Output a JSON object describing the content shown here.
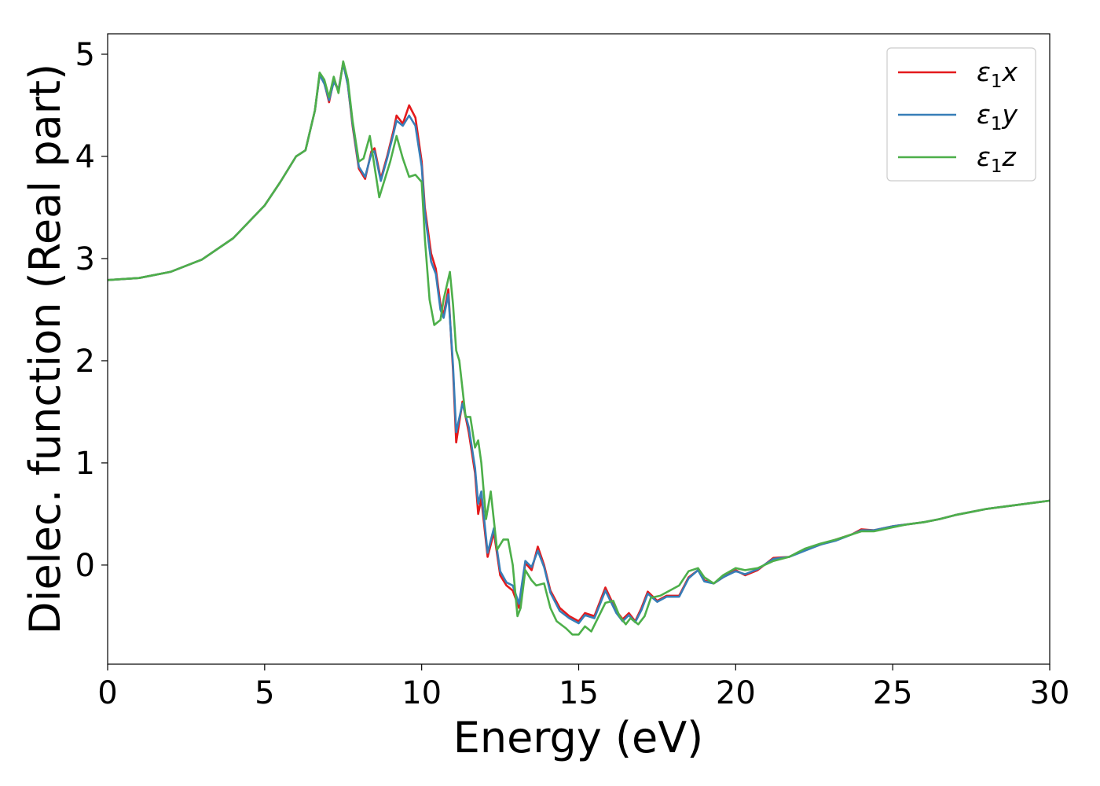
{
  "chart_data": {
    "type": "line",
    "xlabel": "Energy (eV)",
    "ylabel": "Dielec. function (Real part)",
    "xlim": [
      0,
      30
    ],
    "ylim": [
      -0.97,
      5.2
    ],
    "xticks": [
      0,
      5,
      10,
      15,
      20,
      25,
      30
    ],
    "yticks": [
      0,
      1,
      2,
      3,
      4,
      5
    ],
    "grid": false,
    "legend_position": "top-right",
    "series": [
      {
        "name": "ε₁x",
        "legend": {
          "sym": "ε",
          "sub": "1",
          "var": "x"
        },
        "color": "#e41a1c",
        "points": [
          [
            0,
            2.79
          ],
          [
            1,
            2.81
          ],
          [
            2,
            2.87
          ],
          [
            3,
            2.99
          ],
          [
            4,
            3.2
          ],
          [
            5,
            3.52
          ],
          [
            5.5,
            3.75
          ],
          [
            6,
            4.0
          ],
          [
            6.3,
            4.06
          ],
          [
            6.6,
            4.45
          ],
          [
            6.75,
            4.8
          ],
          [
            6.9,
            4.72
          ],
          [
            7.05,
            4.53
          ],
          [
            7.2,
            4.75
          ],
          [
            7.35,
            4.65
          ],
          [
            7.5,
            4.92
          ],
          [
            7.65,
            4.7
          ],
          [
            7.8,
            4.3
          ],
          [
            8.0,
            3.88
          ],
          [
            8.2,
            3.78
          ],
          [
            8.4,
            4.05
          ],
          [
            8.5,
            4.08
          ],
          [
            8.7,
            3.78
          ],
          [
            8.9,
            4.0
          ],
          [
            9.1,
            4.25
          ],
          [
            9.2,
            4.4
          ],
          [
            9.4,
            4.32
          ],
          [
            9.6,
            4.5
          ],
          [
            9.8,
            4.38
          ],
          [
            10.0,
            3.95
          ],
          [
            10.1,
            3.5
          ],
          [
            10.3,
            3.05
          ],
          [
            10.45,
            2.9
          ],
          [
            10.6,
            2.55
          ],
          [
            10.7,
            2.45
          ],
          [
            10.85,
            2.7
          ],
          [
            11.0,
            1.9
          ],
          [
            11.1,
            1.2
          ],
          [
            11.3,
            1.6
          ],
          [
            11.5,
            1.3
          ],
          [
            11.7,
            0.9
          ],
          [
            11.8,
            0.5
          ],
          [
            11.9,
            0.65
          ],
          [
            12.1,
            0.08
          ],
          [
            12.3,
            0.32
          ],
          [
            12.5,
            -0.1
          ],
          [
            12.7,
            -0.2
          ],
          [
            12.9,
            -0.25
          ],
          [
            13.1,
            -0.42
          ],
          [
            13.3,
            0.02
          ],
          [
            13.5,
            -0.05
          ],
          [
            13.7,
            0.18
          ],
          [
            13.9,
            0.0
          ],
          [
            14.1,
            -0.25
          ],
          [
            14.4,
            -0.42
          ],
          [
            14.7,
            -0.5
          ],
          [
            15.0,
            -0.55
          ],
          [
            15.2,
            -0.47
          ],
          [
            15.5,
            -0.5
          ],
          [
            15.85,
            -0.22
          ],
          [
            16.2,
            -0.45
          ],
          [
            16.4,
            -0.53
          ],
          [
            16.6,
            -0.47
          ],
          [
            16.8,
            -0.55
          ],
          [
            17.0,
            -0.42
          ],
          [
            17.2,
            -0.26
          ],
          [
            17.5,
            -0.35
          ],
          [
            17.8,
            -0.3
          ],
          [
            18.2,
            -0.3
          ],
          [
            18.5,
            -0.12
          ],
          [
            18.8,
            -0.05
          ],
          [
            19.0,
            -0.15
          ],
          [
            19.3,
            -0.18
          ],
          [
            19.6,
            -0.12
          ],
          [
            20.0,
            -0.05
          ],
          [
            20.3,
            -0.1
          ],
          [
            20.7,
            -0.05
          ],
          [
            21.2,
            0.07
          ],
          [
            21.7,
            0.08
          ],
          [
            22.2,
            0.15
          ],
          [
            22.7,
            0.2
          ],
          [
            23.2,
            0.25
          ],
          [
            23.7,
            0.3
          ],
          [
            24.0,
            0.35
          ],
          [
            24.4,
            0.34
          ],
          [
            25.0,
            0.38
          ],
          [
            25.5,
            0.4
          ],
          [
            26.0,
            0.42
          ],
          [
            26.5,
            0.45
          ],
          [
            27.0,
            0.49
          ],
          [
            27.5,
            0.52
          ],
          [
            28.0,
            0.55
          ],
          [
            28.5,
            0.57
          ],
          [
            29.0,
            0.59
          ],
          [
            29.5,
            0.61
          ],
          [
            30.0,
            0.63
          ]
        ]
      },
      {
        "name": "ε₁y",
        "legend": {
          "sym": "ε",
          "sub": "1",
          "var": "y"
        },
        "color": "#377eb8",
        "points": [
          [
            0,
            2.79
          ],
          [
            1,
            2.81
          ],
          [
            2,
            2.87
          ],
          [
            3,
            2.99
          ],
          [
            4,
            3.2
          ],
          [
            5,
            3.52
          ],
          [
            5.5,
            3.75
          ],
          [
            6,
            4.0
          ],
          [
            6.3,
            4.06
          ],
          [
            6.6,
            4.45
          ],
          [
            6.75,
            4.8
          ],
          [
            6.9,
            4.71
          ],
          [
            7.05,
            4.55
          ],
          [
            7.2,
            4.73
          ],
          [
            7.35,
            4.65
          ],
          [
            7.5,
            4.91
          ],
          [
            7.65,
            4.7
          ],
          [
            7.8,
            4.32
          ],
          [
            8.0,
            3.9
          ],
          [
            8.2,
            3.8
          ],
          [
            8.4,
            4.03
          ],
          [
            8.5,
            4.05
          ],
          [
            8.7,
            3.76
          ],
          [
            8.9,
            3.98
          ],
          [
            9.1,
            4.22
          ],
          [
            9.2,
            4.35
          ],
          [
            9.4,
            4.3
          ],
          [
            9.6,
            4.4
          ],
          [
            9.8,
            4.3
          ],
          [
            10.0,
            3.9
          ],
          [
            10.1,
            3.45
          ],
          [
            10.3,
            2.97
          ],
          [
            10.45,
            2.85
          ],
          [
            10.6,
            2.5
          ],
          [
            10.7,
            2.42
          ],
          [
            10.85,
            2.65
          ],
          [
            11.0,
            1.95
          ],
          [
            11.1,
            1.3
          ],
          [
            11.3,
            1.58
          ],
          [
            11.5,
            1.35
          ],
          [
            11.7,
            0.95
          ],
          [
            11.8,
            0.6
          ],
          [
            11.9,
            0.72
          ],
          [
            12.1,
            0.12
          ],
          [
            12.3,
            0.36
          ],
          [
            12.5,
            -0.06
          ],
          [
            12.7,
            -0.17
          ],
          [
            12.9,
            -0.2
          ],
          [
            13.1,
            -0.38
          ],
          [
            13.3,
            0.04
          ],
          [
            13.5,
            -0.02
          ],
          [
            13.7,
            0.14
          ],
          [
            13.9,
            -0.02
          ],
          [
            14.1,
            -0.27
          ],
          [
            14.4,
            -0.45
          ],
          [
            14.7,
            -0.52
          ],
          [
            15.0,
            -0.57
          ],
          [
            15.2,
            -0.49
          ],
          [
            15.5,
            -0.52
          ],
          [
            15.85,
            -0.25
          ],
          [
            16.2,
            -0.47
          ],
          [
            16.4,
            -0.55
          ],
          [
            16.6,
            -0.49
          ],
          [
            16.8,
            -0.56
          ],
          [
            17.0,
            -0.44
          ],
          [
            17.2,
            -0.28
          ],
          [
            17.5,
            -0.36
          ],
          [
            17.8,
            -0.31
          ],
          [
            18.2,
            -0.31
          ],
          [
            18.5,
            -0.13
          ],
          [
            18.8,
            -0.05
          ],
          [
            19.0,
            -0.16
          ],
          [
            19.3,
            -0.18
          ],
          [
            19.6,
            -0.12
          ],
          [
            20.0,
            -0.06
          ],
          [
            20.3,
            -0.09
          ],
          [
            20.7,
            -0.04
          ],
          [
            21.2,
            0.06
          ],
          [
            21.7,
            0.08
          ],
          [
            22.2,
            0.14
          ],
          [
            22.7,
            0.2
          ],
          [
            23.2,
            0.24
          ],
          [
            23.7,
            0.3
          ],
          [
            24.0,
            0.34
          ],
          [
            24.4,
            0.34
          ],
          [
            25.0,
            0.38
          ],
          [
            25.5,
            0.4
          ],
          [
            26.0,
            0.42
          ],
          [
            26.5,
            0.45
          ],
          [
            27.0,
            0.49
          ],
          [
            27.5,
            0.52
          ],
          [
            28.0,
            0.55
          ],
          [
            28.5,
            0.57
          ],
          [
            29.0,
            0.59
          ],
          [
            29.5,
            0.61
          ],
          [
            30.0,
            0.63
          ]
        ]
      },
      {
        "name": "ε₁z",
        "legend": {
          "sym": "ε",
          "sub": "1",
          "var": "z"
        },
        "color": "#4daf4a",
        "points": [
          [
            0,
            2.79
          ],
          [
            1,
            2.81
          ],
          [
            2,
            2.87
          ],
          [
            3,
            2.99
          ],
          [
            4,
            3.2
          ],
          [
            5,
            3.52
          ],
          [
            5.5,
            3.75
          ],
          [
            6,
            4.0
          ],
          [
            6.3,
            4.06
          ],
          [
            6.6,
            4.45
          ],
          [
            6.75,
            4.82
          ],
          [
            6.9,
            4.75
          ],
          [
            7.05,
            4.58
          ],
          [
            7.2,
            4.78
          ],
          [
            7.35,
            4.62
          ],
          [
            7.5,
            4.93
          ],
          [
            7.65,
            4.75
          ],
          [
            7.8,
            4.35
          ],
          [
            8.0,
            3.95
          ],
          [
            8.15,
            3.98
          ],
          [
            8.35,
            4.2
          ],
          [
            8.5,
            3.9
          ],
          [
            8.65,
            3.6
          ],
          [
            8.85,
            3.8
          ],
          [
            9.0,
            3.95
          ],
          [
            9.2,
            4.2
          ],
          [
            9.4,
            3.98
          ],
          [
            9.6,
            3.8
          ],
          [
            9.8,
            3.82
          ],
          [
            10.0,
            3.75
          ],
          [
            10.1,
            3.2
          ],
          [
            10.25,
            2.6
          ],
          [
            10.4,
            2.35
          ],
          [
            10.6,
            2.4
          ],
          [
            10.7,
            2.6
          ],
          [
            10.9,
            2.87
          ],
          [
            11.0,
            2.55
          ],
          [
            11.1,
            2.1
          ],
          [
            11.2,
            2.0
          ],
          [
            11.4,
            1.45
          ],
          [
            11.55,
            1.45
          ],
          [
            11.7,
            1.15
          ],
          [
            11.8,
            1.22
          ],
          [
            11.9,
            1.0
          ],
          [
            12.05,
            0.45
          ],
          [
            12.2,
            0.72
          ],
          [
            12.4,
            0.15
          ],
          [
            12.6,
            0.25
          ],
          [
            12.75,
            0.25
          ],
          [
            12.9,
            0.0
          ],
          [
            13.05,
            -0.5
          ],
          [
            13.15,
            -0.42
          ],
          [
            13.3,
            -0.05
          ],
          [
            13.5,
            -0.15
          ],
          [
            13.65,
            -0.2
          ],
          [
            13.9,
            -0.18
          ],
          [
            14.1,
            -0.42
          ],
          [
            14.3,
            -0.55
          ],
          [
            14.6,
            -0.62
          ],
          [
            14.8,
            -0.68
          ],
          [
            15.0,
            -0.68
          ],
          [
            15.2,
            -0.6
          ],
          [
            15.4,
            -0.65
          ],
          [
            15.85,
            -0.37
          ],
          [
            16.1,
            -0.35
          ],
          [
            16.3,
            -0.5
          ],
          [
            16.5,
            -0.58
          ],
          [
            16.65,
            -0.52
          ],
          [
            16.9,
            -0.58
          ],
          [
            17.1,
            -0.5
          ],
          [
            17.3,
            -0.32
          ],
          [
            17.6,
            -0.3
          ],
          [
            17.9,
            -0.25
          ],
          [
            18.2,
            -0.2
          ],
          [
            18.5,
            -0.06
          ],
          [
            18.8,
            -0.03
          ],
          [
            19.0,
            -0.12
          ],
          [
            19.3,
            -0.18
          ],
          [
            19.6,
            -0.1
          ],
          [
            20.0,
            -0.03
          ],
          [
            20.3,
            -0.05
          ],
          [
            20.7,
            -0.03
          ],
          [
            21.2,
            0.04
          ],
          [
            21.7,
            0.08
          ],
          [
            22.2,
            0.16
          ],
          [
            22.7,
            0.21
          ],
          [
            23.2,
            0.25
          ],
          [
            23.7,
            0.3
          ],
          [
            24.0,
            0.33
          ],
          [
            24.4,
            0.33
          ],
          [
            25.0,
            0.37
          ],
          [
            25.5,
            0.4
          ],
          [
            26.0,
            0.42
          ],
          [
            26.5,
            0.45
          ],
          [
            27.0,
            0.49
          ],
          [
            27.5,
            0.52
          ],
          [
            28.0,
            0.55
          ],
          [
            28.5,
            0.57
          ],
          [
            29.0,
            0.59
          ],
          [
            29.5,
            0.61
          ],
          [
            30.0,
            0.63
          ]
        ]
      }
    ]
  }
}
